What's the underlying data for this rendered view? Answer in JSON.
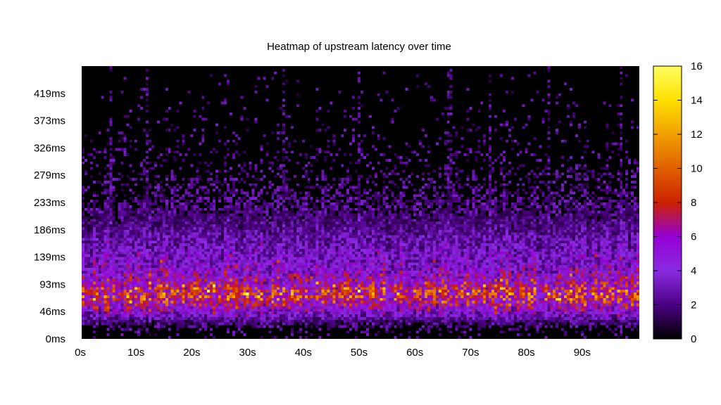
{
  "chart_data": {
    "type": "heatmap",
    "title": "Heatmap of upstream latency over time",
    "xlabel": "",
    "ylabel": "",
    "x_tick_labels": [
      "0s",
      "10s",
      "20s",
      "30s",
      "40s",
      "50s",
      "60s",
      "70s",
      "80s",
      "90s"
    ],
    "x_ticks": [
      0,
      10,
      20,
      30,
      40,
      50,
      60,
      70,
      80,
      90
    ],
    "xlim": [
      0,
      100
    ],
    "y_tick_labels": [
      "0ms",
      "46ms",
      "93ms",
      "139ms",
      "186ms",
      "233ms",
      "279ms",
      "326ms",
      "373ms",
      "419ms"
    ],
    "y_ticks": [
      0,
      46.5,
      93,
      139.5,
      186,
      232.5,
      279,
      325.5,
      372,
      418.5
    ],
    "ylim": [
      0,
      465
    ],
    "colorbar": {
      "ticks": [
        0,
        2,
        4,
        6,
        8,
        10,
        12,
        14,
        16
      ],
      "tick_labels": [
        "0",
        "2",
        "4",
        "6",
        "8",
        "10",
        "12",
        "14",
        "16"
      ],
      "range": [
        0,
        16
      ],
      "colors": [
        "#000000",
        "#4b0082",
        "#8a2be2",
        "#9400d3",
        "#cc2200",
        "#e06000",
        "#f0a000",
        "#ffe000",
        "#ffff60"
      ]
    },
    "grid": false,
    "legend": "colorbar-right",
    "cell_seconds": 0.5,
    "cell_ms": 4.65,
    "profile": {
      "description_of_density": "counts per cell, peak around 70–90ms, mean ~6-9 at peak band, sparse above 230ms",
      "latency_ms": [
        0,
        20,
        35,
        50,
        65,
        75,
        85,
        95,
        110,
        130,
        150,
        175,
        200,
        230,
        260,
        300,
        350,
        420,
        465
      ],
      "mean_count": [
        0.1,
        0.6,
        2.5,
        5.0,
        7.0,
        8.0,
        7.5,
        6.0,
        4.8,
        4.0,
        3.4,
        2.6,
        1.8,
        1.1,
        0.6,
        0.3,
        0.15,
        0.05,
        0.02
      ]
    },
    "vertical_streaks_s": [
      5,
      11.5,
      36,
      49.5,
      65.5,
      66,
      73,
      83.5,
      96.5
    ]
  }
}
